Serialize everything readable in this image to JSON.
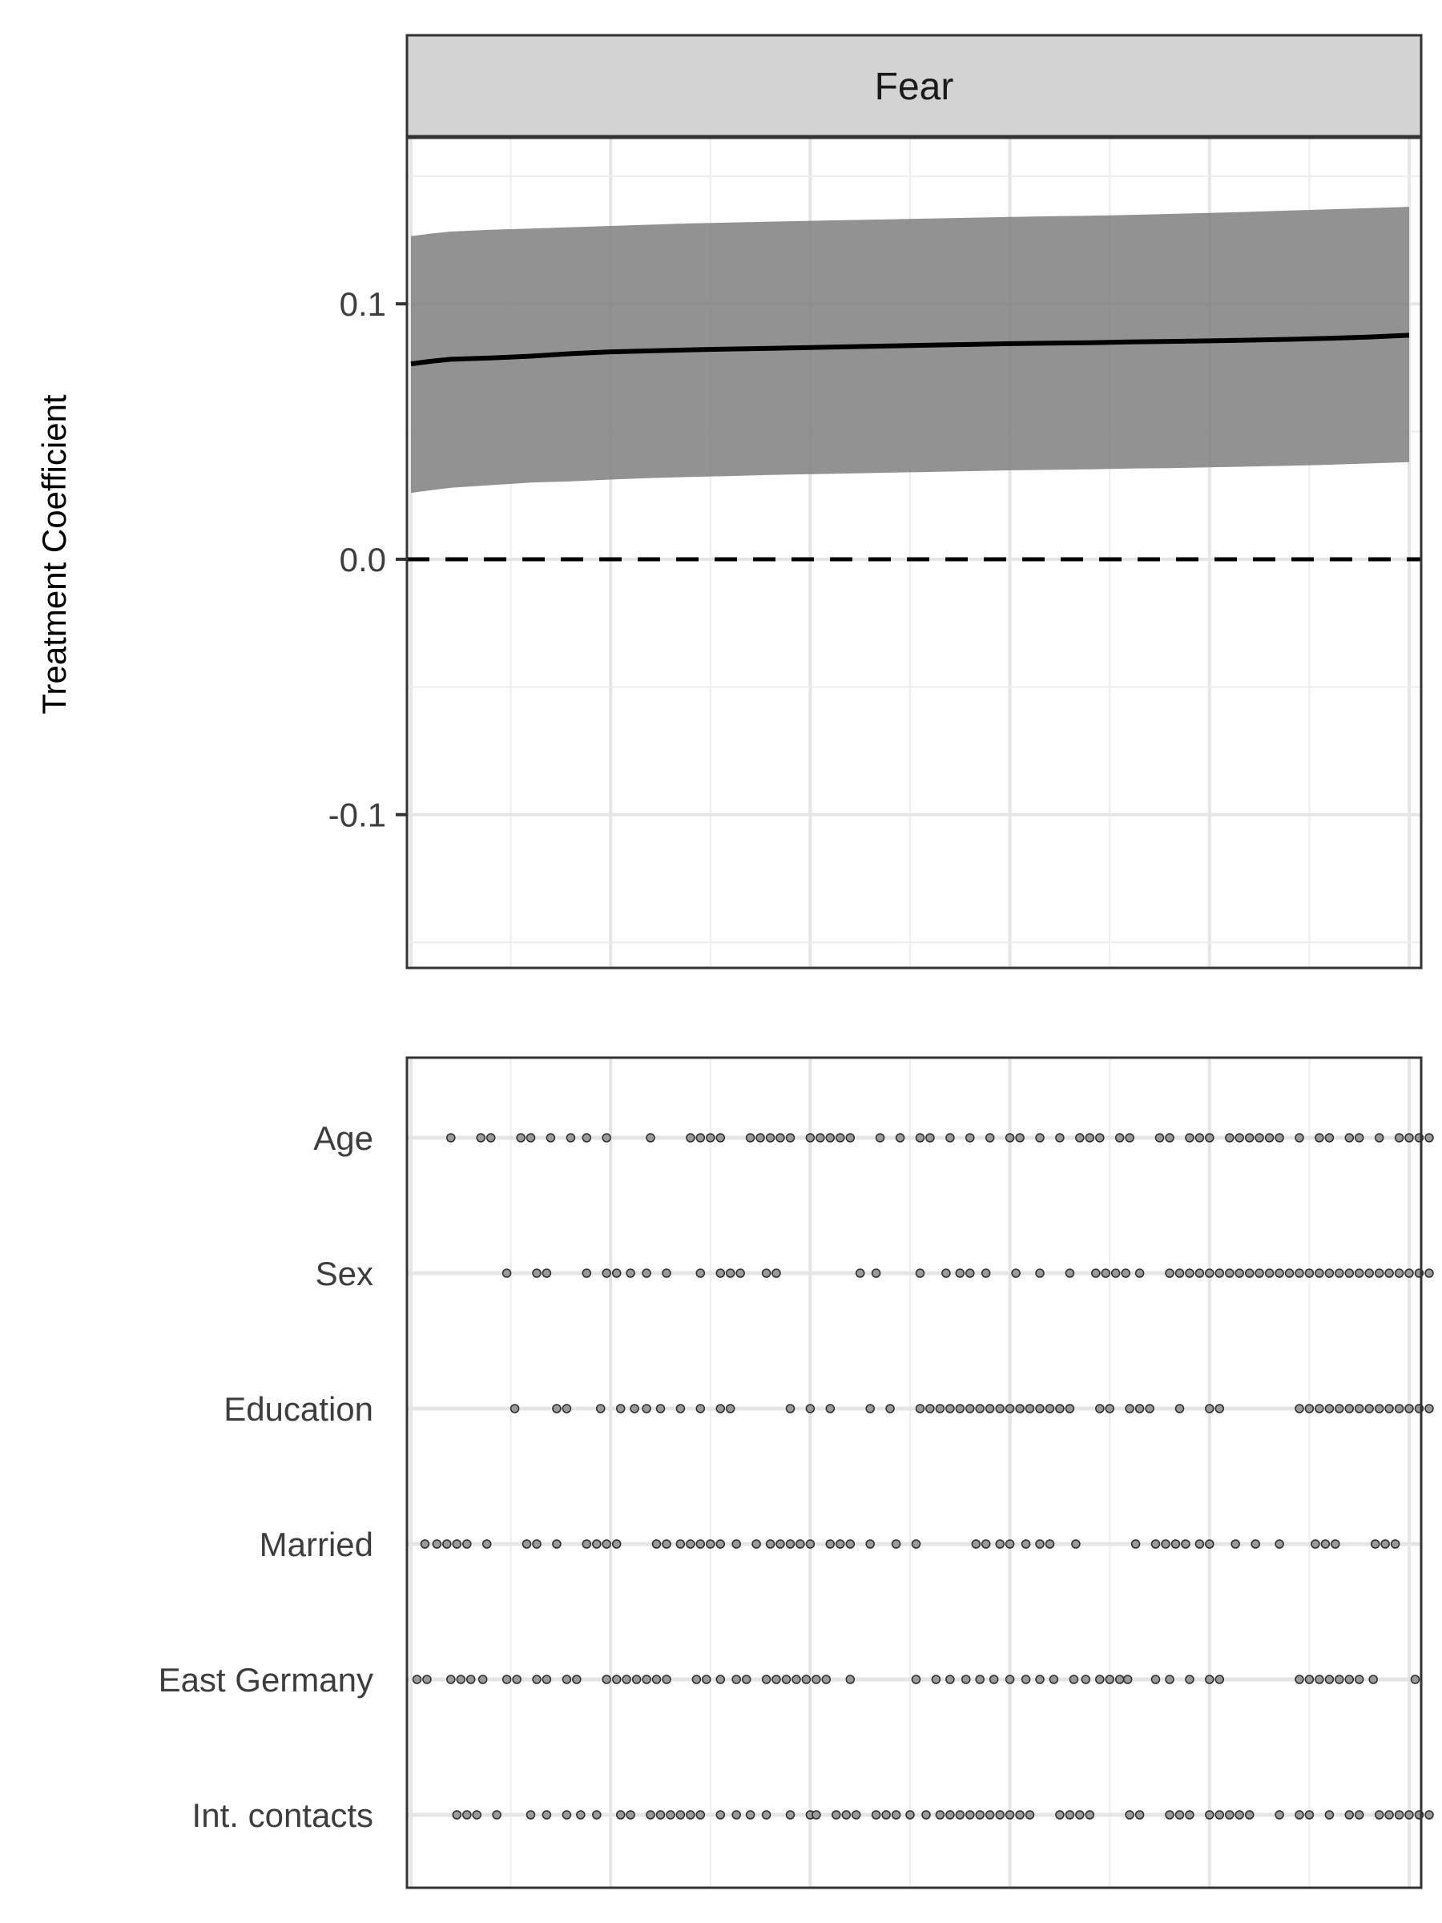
{
  "chart_data": [
    {
      "type": "line",
      "facet_title": "Fear",
      "ylabel": "Treatment Coefficient",
      "xlabel": "",
      "ylim": [
        -0.16,
        0.165
      ],
      "xlim": [
        -0.2,
        50.6
      ],
      "yticks": [
        {
          "value": 0.1,
          "label": "0.1"
        },
        {
          "value": 0.0,
          "label": "0.0"
        },
        {
          "value": -0.1,
          "label": "-0.1"
        }
      ],
      "grid": true,
      "reference_line": {
        "y": 0.0,
        "style": "dashed"
      },
      "series": [
        {
          "x": [
            0,
            1,
            2,
            4,
            6,
            8,
            10,
            12,
            14,
            16,
            18,
            20,
            22,
            24,
            26,
            28,
            30,
            32,
            34,
            36,
            38,
            40,
            42,
            44,
            46,
            48,
            50
          ],
          "values": [
            0.0765,
            0.0775,
            0.0783,
            0.0788,
            0.0795,
            0.0805,
            0.0812,
            0.0816,
            0.082,
            0.0823,
            0.0826,
            0.0829,
            0.0832,
            0.0835,
            0.0838,
            0.0841,
            0.0844,
            0.0846,
            0.0848,
            0.0851,
            0.0853,
            0.0855,
            0.0858,
            0.0861,
            0.0865,
            0.087,
            0.0877
          ],
          "lower": [
            0.026,
            0.027,
            0.028,
            0.029,
            0.03,
            0.0305,
            0.0312,
            0.0318,
            0.0322,
            0.0326,
            0.033,
            0.0333,
            0.0336,
            0.0339,
            0.0342,
            0.0345,
            0.0348,
            0.035,
            0.0352,
            0.0355,
            0.0357,
            0.036,
            0.0363,
            0.0366,
            0.037,
            0.0375,
            0.038
          ],
          "upper": [
            0.1265,
            0.1275,
            0.1283,
            0.129,
            0.1295,
            0.13,
            0.1305,
            0.131,
            0.1315,
            0.1318,
            0.1322,
            0.1325,
            0.1328,
            0.1331,
            0.1334,
            0.1337,
            0.134,
            0.1343,
            0.1345,
            0.1348,
            0.1352,
            0.1356,
            0.136,
            0.1365,
            0.137,
            0.1375,
            0.138
          ]
        }
      ]
    },
    {
      "type": "scatter",
      "xlim": [
        -0.2,
        50.6
      ],
      "categories": [
        "Age",
        "Sex",
        "Education",
        "Married",
        "East Germany",
        "Int. contacts"
      ],
      "grid": true,
      "points": [
        [
          2,
          3.5,
          4,
          5.5,
          6,
          7,
          8,
          8.8,
          9.8,
          12,
          14,
          14.5,
          15,
          15.5,
          17,
          17.5,
          18,
          18.5,
          19,
          20,
          20.5,
          21,
          21.5,
          22,
          23.5,
          24.5,
          25.5,
          26,
          27,
          28,
          29,
          30,
          30.5,
          31.5,
          32.5,
          33.5,
          34,
          34.5,
          35.5,
          36,
          37.5,
          38,
          39,
          39.5,
          40,
          41,
          41.5,
          42,
          42.5,
          43,
          43.5,
          44.5,
          45.5,
          46,
          47,
          47.5,
          48.5,
          49.5,
          50,
          50.5,
          51
        ],
        [
          4.8,
          6.3,
          6.8,
          8.8,
          9.8,
          10.3,
          11,
          11.8,
          12.8,
          14.5,
          15.5,
          16,
          16.5,
          17.8,
          18.3,
          22.5,
          23.3,
          25.5,
          26.8,
          27.5,
          28,
          28.8,
          30.3,
          31.5,
          33,
          34.3,
          34.8,
          35.3,
          35.8,
          36.5,
          38,
          38.5,
          39,
          39.5,
          40,
          40.5,
          41,
          41.5,
          42,
          42.5,
          43,
          43.5,
          44,
          44.5,
          45,
          45.5,
          46,
          46.5,
          47,
          47.5,
          48,
          48.5,
          49,
          49.5,
          50,
          50.5,
          51
        ],
        [
          5.2,
          7.3,
          7.8,
          9.5,
          10.5,
          11.2,
          11.8,
          12.5,
          13.5,
          14.5,
          15.5,
          16,
          19,
          20,
          21,
          23,
          24,
          25.5,
          26,
          26.5,
          27,
          27.5,
          28,
          28.5,
          29,
          29.5,
          30,
          30.5,
          31,
          31.5,
          32,
          32.5,
          33,
          34.5,
          35,
          36,
          36.5,
          37,
          38.5,
          40,
          40.5,
          44.5,
          45,
          45.5,
          46,
          46.5,
          47,
          47.5,
          48,
          48.5,
          49,
          49.5,
          50,
          50.5,
          51
        ],
        [
          0.7,
          1.3,
          1.8,
          2.3,
          2.8,
          3.8,
          5.8,
          6.3,
          7.3,
          8.8,
          9.3,
          9.8,
          10.3,
          12.3,
          12.8,
          13.5,
          14,
          14.5,
          15,
          15.5,
          16.3,
          17.3,
          18,
          18.5,
          19,
          19.5,
          20,
          21,
          21.5,
          22,
          23,
          24.3,
          25.3,
          28.3,
          28.8,
          29.5,
          30,
          30.8,
          31.5,
          32,
          33.3,
          36.3,
          37.3,
          37.8,
          38.3,
          38.8,
          39.5,
          40,
          41.3,
          42.3,
          43.5,
          45.3,
          45.8,
          46.3,
          48.3,
          48.8,
          49.3
        ],
        [
          0.3,
          0.8,
          2.0,
          2.5,
          3.0,
          3.6,
          4.8,
          5.3,
          6.3,
          6.8,
          7.8,
          8.3,
          9.8,
          10.3,
          10.8,
          11.3,
          11.8,
          12.3,
          12.8,
          14.3,
          14.8,
          15.5,
          16.3,
          16.8,
          17.8,
          18.3,
          18.8,
          19.3,
          19.8,
          20.3,
          20.8,
          22.0,
          25.3,
          26.3,
          27.0,
          27.8,
          28.5,
          29.2,
          30.0,
          30.8,
          31.5,
          32.2,
          33.2,
          33.8,
          34.5,
          35.0,
          35.5,
          35.9,
          37.3,
          38.0,
          39.0,
          40.0,
          40.5,
          44.5,
          45.0,
          45.5,
          46.0,
          46.5,
          47.0,
          47.5,
          48.2,
          50.3
        ],
        [
          2.3,
          2.8,
          3.3,
          4.3,
          6.0,
          6.8,
          7.8,
          8.5,
          9.3,
          10.5,
          11.0,
          12.0,
          12.5,
          13.0,
          13.5,
          14.0,
          14.5,
          15.5,
          16.3,
          17.0,
          17.8,
          19.0,
          20.0,
          20.3,
          21.3,
          21.8,
          22.3,
          23.3,
          23.8,
          24.3,
          25.0,
          25.8,
          26.5,
          27.0,
          27.5,
          28.0,
          28.5,
          29.0,
          29.5,
          30.0,
          30.5,
          31.0,
          32.5,
          33.0,
          33.5,
          34.0,
          36.0,
          36.5,
          38.0,
          38.5,
          39.0,
          40.0,
          40.5,
          41.0,
          41.5,
          42.0,
          43.5,
          44.5,
          45.0,
          46.0,
          47.0,
          47.5,
          48.5,
          49.0,
          49.5,
          50.0,
          50.5,
          51.0
        ]
      ]
    }
  ]
}
